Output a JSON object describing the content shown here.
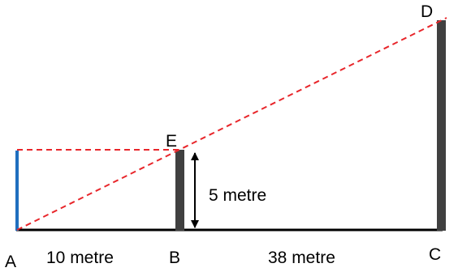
{
  "figure": {
    "points": {
      "a": "A",
      "b": "B",
      "c": "C",
      "d": "D",
      "e": "E"
    },
    "measurements": {
      "ab": "10 metre",
      "bc": "38 metre",
      "be": "5 metre"
    },
    "colors": {
      "ground": "#000000",
      "pole": "#404040",
      "observer": "#1f6fbf",
      "sight_line": "#e8262b",
      "arrow": "#000000"
    }
  }
}
